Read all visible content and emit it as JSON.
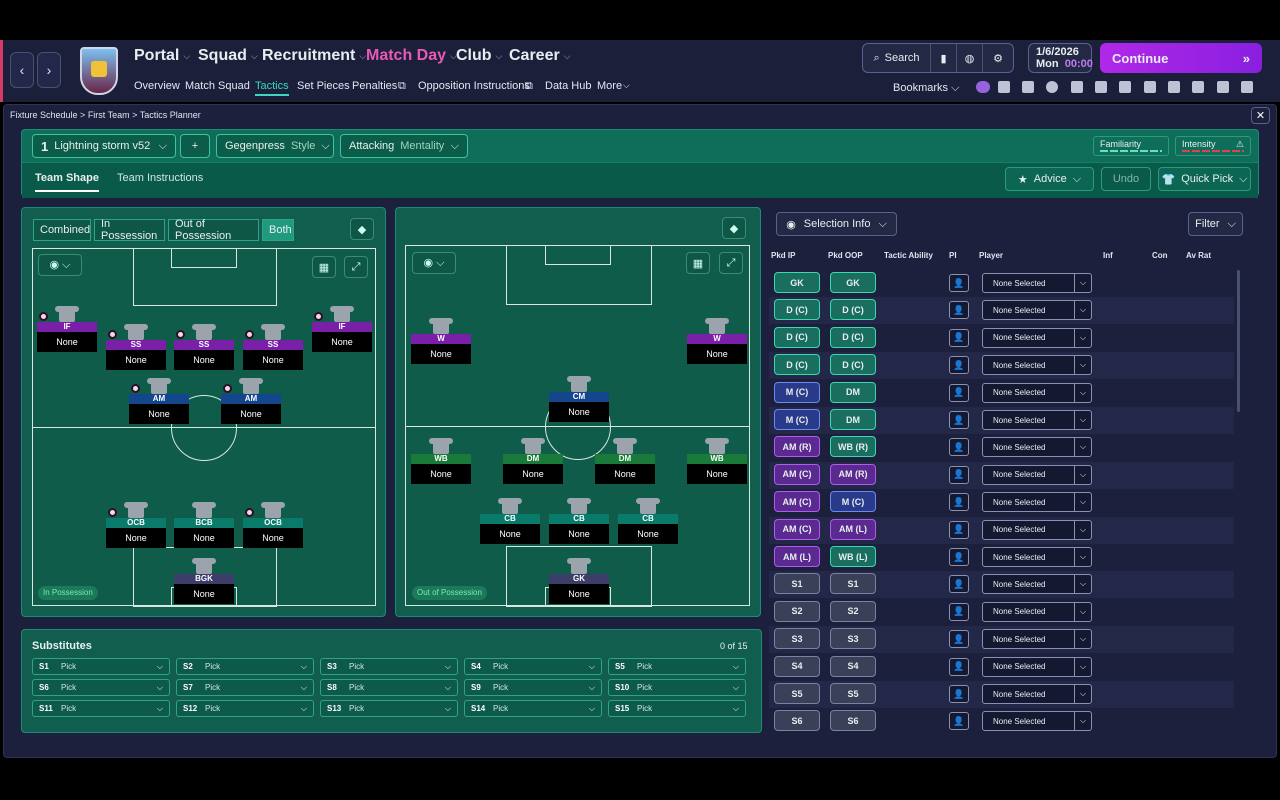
{
  "nav": {
    "menus": [
      "Portal",
      "Squad",
      "Recruitment",
      "Match Day",
      "Club",
      "Career"
    ],
    "submenus": [
      "Overview",
      "Match Squad",
      "Tactics",
      "Set Pieces",
      "Penalties",
      "Opposition Instructions",
      "Data Hub",
      "More"
    ],
    "search_label": "Search",
    "date": "1/6/2026",
    "day": "Mon",
    "time": "00:00",
    "continue_label": "Continue",
    "bookmarks_label": "Bookmarks",
    "accent": "#3ad8c0",
    "matchday_color": "#e85ab8"
  },
  "breadcrumb": [
    "Fixture Schedule",
    "First Team",
    "Tactics Planner"
  ],
  "tactics_bar": {
    "slot_number": "1",
    "tactic_name": "Lightning storm v52",
    "add_label": "+",
    "style_value": "Gegenpress",
    "style_label": "Style",
    "mentality_value": "Attacking",
    "mentality_label": "Mentality",
    "familiarity_label": "Familiarity",
    "intensity_label": "Intensity",
    "tabs": [
      "Team Shape",
      "Team Instructions"
    ],
    "advice_label": "Advice",
    "undo_label": "Undo",
    "quickpick_label": "Quick Pick"
  },
  "views": [
    "Combined",
    "In Possession",
    "Out of Possession",
    "Both"
  ],
  "in_possession": {
    "status": "In Possession",
    "players": [
      {
        "role": "IF",
        "name": "None",
        "color": "purple",
        "ball": true
      },
      {
        "role": "SS",
        "name": "None",
        "color": "purple",
        "ball": true
      },
      {
        "role": "SS",
        "name": "None",
        "color": "purple",
        "ball": true
      },
      {
        "role": "SS",
        "name": "None",
        "color": "purple",
        "ball": true
      },
      {
        "role": "IF",
        "name": "None",
        "color": "purple",
        "ball": true
      },
      {
        "role": "AM",
        "name": "None",
        "color": "blue",
        "ball": true
      },
      {
        "role": "AM",
        "name": "None",
        "color": "blue",
        "ball": true
      },
      {
        "role": "OCB",
        "name": "None",
        "color": "teal",
        "ball": true
      },
      {
        "role": "BCB",
        "name": "None",
        "color": "teal",
        "ball": false
      },
      {
        "role": "OCB",
        "name": "None",
        "color": "teal",
        "ball": true
      },
      {
        "role": "BGK",
        "name": "None",
        "color": "gk",
        "ball": false
      }
    ]
  },
  "out_possession": {
    "status": "Out of Possession",
    "players": [
      {
        "role": "W",
        "name": "None",
        "color": "purple"
      },
      {
        "role": "W",
        "name": "None",
        "color": "purple"
      },
      {
        "role": "CM",
        "name": "None",
        "color": "blue"
      },
      {
        "role": "WB",
        "name": "None",
        "color": "green"
      },
      {
        "role": "DM",
        "name": "None",
        "color": "green"
      },
      {
        "role": "DM",
        "name": "None",
        "color": "green"
      },
      {
        "role": "WB",
        "name": "None",
        "color": "green"
      },
      {
        "role": "CB",
        "name": "None",
        "color": "teal"
      },
      {
        "role": "CB",
        "name": "None",
        "color": "teal"
      },
      {
        "role": "CB",
        "name": "None",
        "color": "teal"
      },
      {
        "role": "GK",
        "name": "None",
        "color": "gk"
      }
    ]
  },
  "substitutes": {
    "title": "Substitutes",
    "count": "0 of 15",
    "slots": [
      {
        "id": "S1",
        "value": "Pick"
      },
      {
        "id": "S2",
        "value": "Pick"
      },
      {
        "id": "S3",
        "value": "Pick"
      },
      {
        "id": "S4",
        "value": "Pick"
      },
      {
        "id": "S5",
        "value": "Pick"
      },
      {
        "id": "S6",
        "value": "Pick"
      },
      {
        "id": "S7",
        "value": "Pick"
      },
      {
        "id": "S8",
        "value": "Pick"
      },
      {
        "id": "S9",
        "value": "Pick"
      },
      {
        "id": "S10",
        "value": "Pick"
      },
      {
        "id": "S11",
        "value": "Pick"
      },
      {
        "id": "S12",
        "value": "Pick"
      },
      {
        "id": "S13",
        "value": "Pick"
      },
      {
        "id": "S14",
        "value": "Pick"
      },
      {
        "id": "S15",
        "value": "Pick"
      }
    ]
  },
  "selection": {
    "info_label": "Selection Info",
    "filter_label": "Filter",
    "columns": [
      "Pkd IP",
      "Pkd OOP",
      "Tactic Ability",
      "PI",
      "Player",
      "Inf",
      "Con",
      "Av Rat"
    ],
    "rows": [
      {
        "ip": "GK",
        "ip_c": "gk",
        "oop": "GK",
        "oop_c": "gk",
        "player": "None Selected"
      },
      {
        "ip": "D (C)",
        "ip_c": "d",
        "oop": "D (C)",
        "oop_c": "d",
        "player": "None Selected"
      },
      {
        "ip": "D (C)",
        "ip_c": "d",
        "oop": "D (C)",
        "oop_c": "d",
        "player": "None Selected"
      },
      {
        "ip": "D (C)",
        "ip_c": "d",
        "oop": "D (C)",
        "oop_c": "d",
        "player": "None Selected"
      },
      {
        "ip": "M (C)",
        "ip_c": "m",
        "oop": "DM",
        "oop_c": "dm",
        "player": "None Selected"
      },
      {
        "ip": "M (C)",
        "ip_c": "m",
        "oop": "DM",
        "oop_c": "dm",
        "player": "None Selected"
      },
      {
        "ip": "AM (R)",
        "ip_c": "am",
        "oop": "WB (R)",
        "oop_c": "wb",
        "player": "None Selected"
      },
      {
        "ip": "AM (C)",
        "ip_c": "am",
        "oop": "AM (R)",
        "oop_c": "am",
        "player": "None Selected"
      },
      {
        "ip": "AM (C)",
        "ip_c": "am",
        "oop": "M (C)",
        "oop_c": "m",
        "player": "None Selected"
      },
      {
        "ip": "AM (C)",
        "ip_c": "am",
        "oop": "AM (L)",
        "oop_c": "am",
        "player": "None Selected"
      },
      {
        "ip": "AM (L)",
        "ip_c": "am",
        "oop": "WB (L)",
        "oop_c": "wb",
        "player": "None Selected"
      },
      {
        "ip": "S1",
        "ip_c": "s",
        "oop": "S1",
        "oop_c": "s",
        "player": "None Selected"
      },
      {
        "ip": "S2",
        "ip_c": "s",
        "oop": "S2",
        "oop_c": "s",
        "player": "None Selected"
      },
      {
        "ip": "S3",
        "ip_c": "s",
        "oop": "S3",
        "oop_c": "s",
        "player": "None Selected"
      },
      {
        "ip": "S4",
        "ip_c": "s",
        "oop": "S4",
        "oop_c": "s",
        "player": "None Selected"
      },
      {
        "ip": "S5",
        "ip_c": "s",
        "oop": "S5",
        "oop_c": "s",
        "player": "None Selected"
      },
      {
        "ip": "S6",
        "ip_c": "s",
        "oop": "S6",
        "oop_c": "s",
        "player": "None Selected"
      }
    ]
  }
}
